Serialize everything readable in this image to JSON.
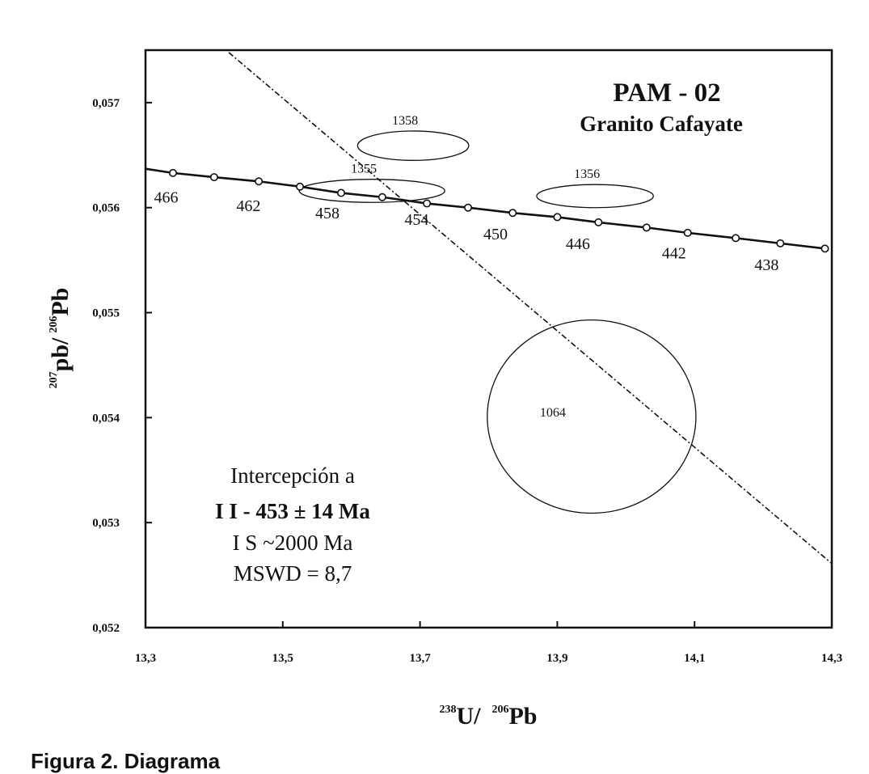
{
  "chart_data": {
    "type": "scatter",
    "title": "PAM - 02",
    "subtitle": "Granito Cafayate",
    "xlabel": {
      "sup1": "238",
      "base1": "U/",
      "sup2": "206",
      "base2": "Pb"
    },
    "ylabel": {
      "sup1": "207",
      "base1": "pb/",
      "sup2": "206",
      "base2": "Pb"
    },
    "xlim": [
      13.3,
      14.3
    ],
    "ylim": [
      0.052,
      0.0575
    ],
    "x_ticks": [
      13.3,
      13.5,
      13.7,
      13.9,
      14.1,
      14.3
    ],
    "x_tick_labels": [
      "13,3",
      "13,5",
      "13,7",
      "13,9",
      "14,1",
      "14,3"
    ],
    "y_ticks": [
      0.052,
      0.053,
      0.054,
      0.055,
      0.056,
      0.057
    ],
    "y_tick_labels": [
      "0,052",
      "0,053",
      "0,054",
      "0,055",
      "0,056",
      "0,057"
    ],
    "grid": false,
    "concordia": {
      "points": [
        {
          "x": 13.3,
          "y": 0.05637
        },
        {
          "x": 13.34,
          "y": 0.05633
        },
        {
          "x": 13.4,
          "y": 0.05629
        },
        {
          "x": 13.465,
          "y": 0.05625
        },
        {
          "x": 13.525,
          "y": 0.0562
        },
        {
          "x": 13.585,
          "y": 0.05614
        },
        {
          "x": 13.645,
          "y": 0.0561
        },
        {
          "x": 13.71,
          "y": 0.05604
        },
        {
          "x": 13.77,
          "y": 0.056
        },
        {
          "x": 13.835,
          "y": 0.05595
        },
        {
          "x": 13.9,
          "y": 0.05591
        },
        {
          "x": 13.96,
          "y": 0.05586
        },
        {
          "x": 14.03,
          "y": 0.05581
        },
        {
          "x": 14.09,
          "y": 0.05576
        },
        {
          "x": 14.16,
          "y": 0.05571
        },
        {
          "x": 14.225,
          "y": 0.05566
        },
        {
          "x": 14.29,
          "y": 0.05561
        }
      ],
      "age_labels": [
        {
          "text": "466",
          "x": 13.33,
          "y": 0.0561
        },
        {
          "text": "462",
          "x": 13.45,
          "y": 0.05602
        },
        {
          "text": "458",
          "x": 13.565,
          "y": 0.05595
        },
        {
          "text": "454",
          "x": 13.695,
          "y": 0.05589
        },
        {
          "text": "450",
          "x": 13.81,
          "y": 0.05575
        },
        {
          "text": "446",
          "x": 13.93,
          "y": 0.05566
        },
        {
          "text": "442",
          "x": 14.07,
          "y": 0.05557
        },
        {
          "text": "438",
          "x": 14.205,
          "y": 0.05546
        }
      ]
    },
    "discordia": [
      {
        "x": 13.3,
        "y": 0.05815
      },
      {
        "x": 14.3,
        "y": 0.05261
      }
    ],
    "ellipses": [
      {
        "label": "1358",
        "cx": 13.69,
        "cy": 0.05659,
        "rx": 0.081,
        "ry": 0.00014
      },
      {
        "label": "1355",
        "cx": 13.63,
        "cy": 0.05616,
        "rx": 0.106,
        "ry": 0.00011
      },
      {
        "label": "1356",
        "cx": 13.955,
        "cy": 0.05611,
        "rx": 0.085,
        "ry": 0.00011
      },
      {
        "label": "1064",
        "cx": 13.95,
        "cy": 0.05401,
        "rx": 0.152,
        "ry": 0.00092
      }
    ],
    "result_text": [
      "Intercepción  a",
      "I I - 453 ± 14 Ma",
      "I S ~2000 Ma",
      "MSWD = 8,7"
    ]
  },
  "caption": "Figura 2. Diagrama"
}
